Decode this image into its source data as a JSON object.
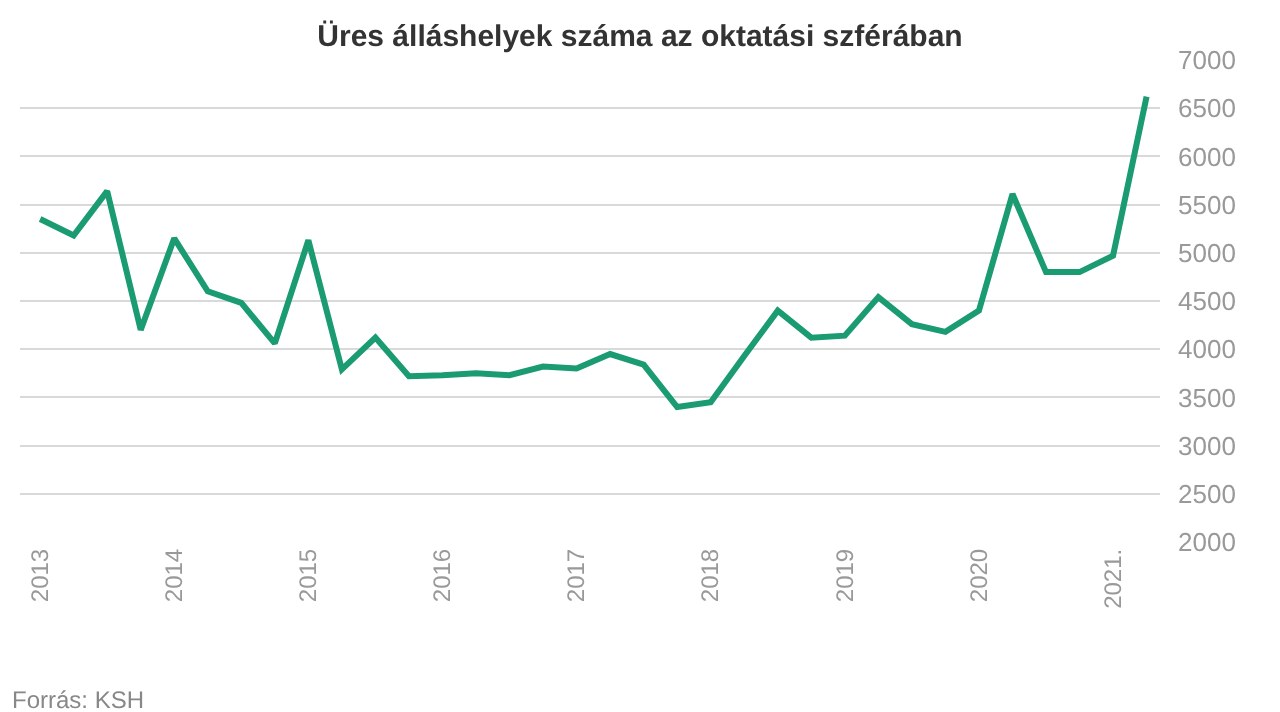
{
  "chart_data": {
    "type": "line",
    "title": "Üres álláshelyek száma az oktatási szférában",
    "categories": [
      "2013",
      null,
      null,
      null,
      "2014",
      null,
      null,
      null,
      "2015",
      null,
      null,
      null,
      "2016",
      null,
      null,
      null,
      "2017",
      null,
      null,
      null,
      "2018",
      null,
      null,
      null,
      "2019",
      null,
      null,
      null,
      "2020",
      null,
      null,
      null,
      "2021.",
      null
    ],
    "series": [
      {
        "color": "#1a9b72",
        "values": [
          5350,
          5180,
          5640,
          4200,
          5150,
          4600,
          4480,
          4060,
          5130,
          3790,
          4120,
          3720,
          3730,
          3750,
          3730,
          3820,
          3800,
          3950,
          3840,
          3400,
          3450,
          3930,
          4400,
          4120,
          4140,
          4540,
          4260,
          4180,
          4400,
          5610,
          4800,
          4800,
          4970,
          6620
        ]
      }
    ],
    "ylim": [
      2000,
      7000
    ],
    "yticks": [
      2000,
      2500,
      3000,
      3500,
      4000,
      4500,
      5000,
      5500,
      6000,
      6500,
      7000
    ],
    "grid": "y",
    "marker": "none",
    "line_style": "solid",
    "annotations": [
      "Forrás: KSH"
    ]
  }
}
